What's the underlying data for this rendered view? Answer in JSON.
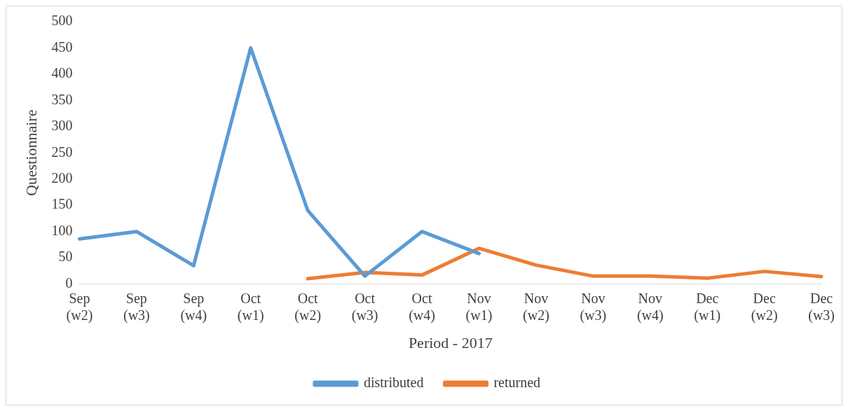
{
  "chart_data": {
    "type": "line",
    "xlabel": "Period - 2017",
    "ylabel": "Questionnaire",
    "categories": [
      "Sep (w2)",
      "Sep (w3)",
      "Sep (w4)",
      "Oct (w1)",
      "Oct (w2)",
      "Oct (w3)",
      "Oct (w4)",
      "Nov (w1)",
      "Nov (w2)",
      "Nov (w3)",
      "Nov (w4)",
      "Dec (w1)",
      "Dec (w2)",
      "Dec (w3)"
    ],
    "series": [
      {
        "name": "distributed",
        "color": "#5b9bd5",
        "values": [
          86,
          100,
          35,
          450,
          140,
          15,
          100,
          58,
          null,
          null,
          null,
          null,
          null,
          null
        ]
      },
      {
        "name": "returned",
        "color": "#ed7d31",
        "values": [
          null,
          null,
          null,
          null,
          10,
          22,
          17,
          68,
          36,
          15,
          15,
          11,
          24,
          14
        ]
      }
    ],
    "ylim": [
      0,
      500
    ],
    "yticks": [
      0,
      50,
      100,
      150,
      200,
      250,
      300,
      350,
      400,
      450,
      500
    ],
    "grid": false,
    "legend": "bottom",
    "marker": "none",
    "line_style": "solid"
  }
}
